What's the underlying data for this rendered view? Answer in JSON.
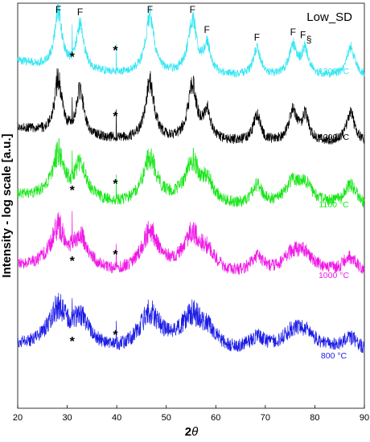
{
  "chart_data": {
    "type": "line",
    "title": "",
    "sample_label": "Low_SD",
    "xlabel_base": "2",
    "xlabel_theta": "θ",
    "ylabel": "Intensity - log scale [a.u.]",
    "xlim": [
      20,
      90
    ],
    "xticks": [
      "20",
      "30",
      "40",
      "50",
      "60",
      "70",
      "80",
      "90"
    ],
    "grid": false,
    "peaks": [
      {
        "x": 28.2,
        "baseline": 0.5,
        "height": 10,
        "width": 0.55
      },
      {
        "x": 32.6,
        "baseline": 0.5,
        "height": 6,
        "width": 0.6
      },
      {
        "x": 46.7,
        "baseline": 0.5,
        "height": 8.5,
        "width": 0.65
      },
      {
        "x": 55.3,
        "baseline": 0.5,
        "height": 7.5,
        "width": 0.7
      },
      {
        "x": 58.2,
        "baseline": 0.5,
        "height": 2.5,
        "width": 0.65
      },
      {
        "x": 68.3,
        "baseline": 0.5,
        "height": 2,
        "width": 0.7
      },
      {
        "x": 75.6,
        "baseline": 0.5,
        "height": 2.4,
        "width": 0.75
      },
      {
        "x": 78.0,
        "baseline": 0.5,
        "height": 2.0,
        "width": 0.7
      },
      {
        "x": 87.2,
        "baseline": 0.5,
        "height": 2.1,
        "width": 0.8
      }
    ],
    "annotations": [
      {
        "text": "F",
        "x": 28.2,
        "series": 0
      },
      {
        "text": "F",
        "x": 32.6,
        "series": 0
      },
      {
        "text": "F",
        "x": 46.7,
        "series": 0
      },
      {
        "text": "F",
        "x": 55.3,
        "series": 0
      },
      {
        "text": "F",
        "x": 58.2,
        "series": 0
      },
      {
        "text": "F",
        "x": 68.3,
        "series": 0
      },
      {
        "text": "F",
        "x": 75.6,
        "series": 0
      },
      {
        "text": "F",
        "x": 77.6,
        "series": 0
      },
      {
        "text": "§",
        "x": 78.8,
        "series": 0
      }
    ],
    "star_marker": {
      "text": "*",
      "x_positions": [
        31.0,
        39.9
      ]
    },
    "series": [
      {
        "name": "1300 °C",
        "color": "#33e6f2",
        "sharpness": 1.0,
        "noise": 0.09
      },
      {
        "name": "1200 °C",
        "color": "#000000",
        "sharpness": 1.0,
        "noise": 0.11
      },
      {
        "name": "1100 °C",
        "color": "#19e619",
        "sharpness": 0.6,
        "noise": 0.13
      },
      {
        "name": "1000 °C",
        "color": "#f019e6",
        "sharpness": 0.45,
        "noise": 0.14
      },
      {
        "name": "800 °C",
        "color": "#1a1ae6",
        "sharpness": 0.35,
        "noise": 0.15
      }
    ]
  }
}
